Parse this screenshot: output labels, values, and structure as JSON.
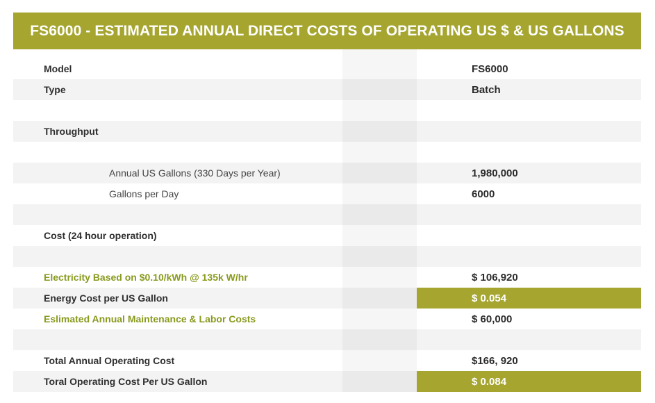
{
  "title": "FS6000 - ESTIMATED ANNUAL DIRECT COSTS OF OPERATING US $ & US GALLONS",
  "colors": {
    "accent": "#a5a530",
    "green_text": "#8a9a1e",
    "row_shade": "#f3f3f3"
  },
  "rows": [
    {
      "label": "Model",
      "value": "FS6000"
    },
    {
      "label": "Type",
      "value": "Batch"
    },
    {
      "label": "",
      "value": ""
    },
    {
      "label": "Throughput",
      "value": ""
    },
    {
      "label": "",
      "value": ""
    },
    {
      "label": "Annual US Gallons (330 Days per Year)",
      "value": "1,980,000"
    },
    {
      "label": "Gallons per Day",
      "value": "6000"
    },
    {
      "label": "",
      "value": ""
    },
    {
      "label": "Cost (24 hour operation)",
      "value": ""
    },
    {
      "label": "",
      "value": ""
    },
    {
      "label": "Electricity Based on $0.10/kWh @ 135k W/hr",
      "value": "$ 106,920"
    },
    {
      "label": "Energy Cost per US Gallon",
      "value": "$ 0.054"
    },
    {
      "label": "Eslimated Annual Maintenance & Labor Costs",
      "value": "$ 60,000"
    },
    {
      "label": "",
      "value": ""
    },
    {
      "label": "Total Annual Operating Cost",
      "value": "$166, 920"
    },
    {
      "label": "Toral Operating Cost Per US Gallon",
      "value": "$ 0.084"
    }
  ]
}
